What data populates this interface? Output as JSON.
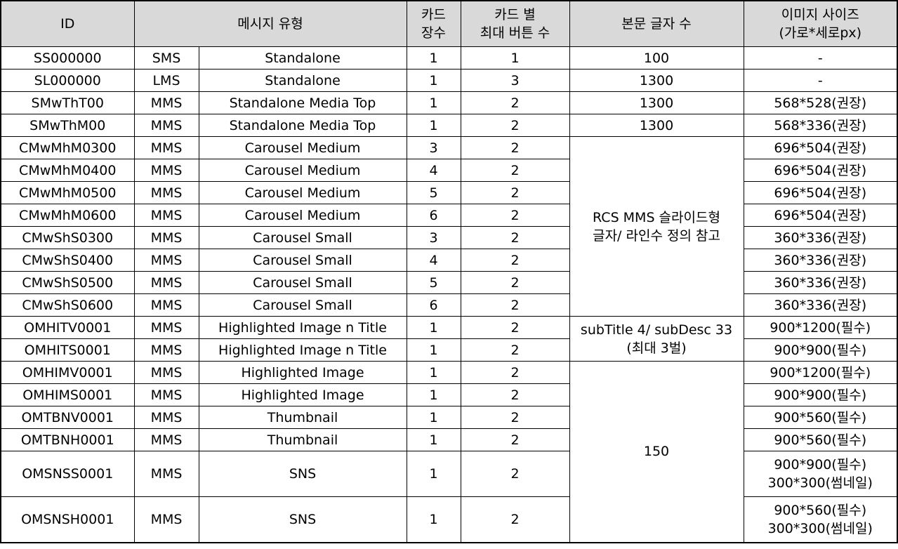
{
  "header": {
    "id": "ID",
    "msg_type": "메시지 유형",
    "card_count_1": "카드",
    "card_count_2": "장수",
    "max_btn_1": "카드 별",
    "max_btn_2": "최대 버튼 수",
    "body_chars": "본문 글자 수",
    "img_size_1": "이미지 사이즈",
    "img_size_2": "(가로*세로px)"
  },
  "rows": [
    {
      "id": "SS000000",
      "kind": "SMS",
      "name": "Standalone",
      "cards": "1",
      "buttons": "1",
      "img": [
        "-"
      ]
    },
    {
      "id": "SL000000",
      "kind": "LMS",
      "name": "Standalone",
      "cards": "1",
      "buttons": "3",
      "img": [
        "-"
      ]
    },
    {
      "id": "SMwThT00",
      "kind": "MMS",
      "name": "Standalone Media Top",
      "cards": "1",
      "buttons": "2",
      "img": [
        "568*528(권장)"
      ]
    },
    {
      "id": "SMwThM00",
      "kind": "MMS",
      "name": "Standalone Media Top",
      "cards": "1",
      "buttons": "2",
      "img": [
        "568*336(권장)"
      ]
    },
    {
      "id": "CMwMhM0300",
      "kind": "MMS",
      "name": "Carousel Medium",
      "cards": "3",
      "buttons": "2",
      "img": [
        "696*504(권장)"
      ]
    },
    {
      "id": "CMwMhM0400",
      "kind": "MMS",
      "name": "Carousel Medium",
      "cards": "4",
      "buttons": "2",
      "img": [
        "696*504(권장)"
      ]
    },
    {
      "id": "CMwMhM0500",
      "kind": "MMS",
      "name": "Carousel Medium",
      "cards": "5",
      "buttons": "2",
      "img": [
        "696*504(권장)"
      ]
    },
    {
      "id": "CMwMhM0600",
      "kind": "MMS",
      "name": "Carousel Medium",
      "cards": "6",
      "buttons": "2",
      "img": [
        "696*504(권장)"
      ]
    },
    {
      "id": "CMwShS0300",
      "kind": "MMS",
      "name": "Carousel Small",
      "cards": "3",
      "buttons": "2",
      "img": [
        "360*336(권장)"
      ]
    },
    {
      "id": "CMwShS0400",
      "kind": "MMS",
      "name": "Carousel Small",
      "cards": "4",
      "buttons": "2",
      "img": [
        "360*336(권장)"
      ]
    },
    {
      "id": "CMwShS0500",
      "kind": "MMS",
      "name": "Carousel Small",
      "cards": "5",
      "buttons": "2",
      "img": [
        "360*336(권장)"
      ]
    },
    {
      "id": "CMwShS0600",
      "kind": "MMS",
      "name": "Carousel Small",
      "cards": "6",
      "buttons": "2",
      "img": [
        "360*336(권장)"
      ]
    },
    {
      "id": "OMHITV0001",
      "kind": "MMS",
      "name": "Highlighted Image n Title",
      "cards": "1",
      "buttons": "2",
      "img": [
        "900*1200(필수)"
      ]
    },
    {
      "id": "OMHITS0001",
      "kind": "MMS",
      "name": "Highlighted Image n Title",
      "cards": "1",
      "buttons": "2",
      "img": [
        "900*900(필수)"
      ]
    },
    {
      "id": "OMHIMV0001",
      "kind": "MMS",
      "name": "Highlighted Image",
      "cards": "1",
      "buttons": "2",
      "img": [
        "900*1200(필수)"
      ]
    },
    {
      "id": "OMHIMS0001",
      "kind": "MMS",
      "name": "Highlighted Image",
      "cards": "1",
      "buttons": "2",
      "img": [
        "900*900(필수)"
      ]
    },
    {
      "id": "OMTBNV0001",
      "kind": "MMS",
      "name": "Thumbnail",
      "cards": "1",
      "buttons": "2",
      "img": [
        "900*560(필수)"
      ]
    },
    {
      "id": "OMTBNH0001",
      "kind": "MMS",
      "name": "Thumbnail",
      "cards": "1",
      "buttons": "2",
      "img": [
        "900*560(필수)"
      ]
    },
    {
      "id": "OMSNSS0001",
      "kind": "MMS",
      "name": "SNS",
      "cards": "1",
      "buttons": "2",
      "img": [
        "900*900(필수)",
        "300*300(썸네일)"
      ]
    },
    {
      "id": "OMSNSH0001",
      "kind": "MMS",
      "name": "SNS",
      "cards": "1",
      "buttons": "2",
      "img": [
        "900*560(필수)",
        "300*300(썸네일)"
      ]
    }
  ],
  "body_groups": [
    {
      "start": 0,
      "span": 1,
      "lines": [
        "100"
      ]
    },
    {
      "start": 1,
      "span": 1,
      "lines": [
        "1300"
      ]
    },
    {
      "start": 2,
      "span": 1,
      "lines": [
        "1300"
      ]
    },
    {
      "start": 3,
      "span": 1,
      "lines": [
        "1300"
      ]
    },
    {
      "start": 4,
      "span": 8,
      "lines": [
        "RCS MMS 슬라이드형",
        "글자/ 라인수 정의 참고"
      ]
    },
    {
      "start": 12,
      "span": 2,
      "lines": [
        "subTitle 4/ subDesc 33",
        "(최대 3벌)"
      ]
    },
    {
      "start": 14,
      "span": 6,
      "lines": [
        "150"
      ]
    }
  ]
}
